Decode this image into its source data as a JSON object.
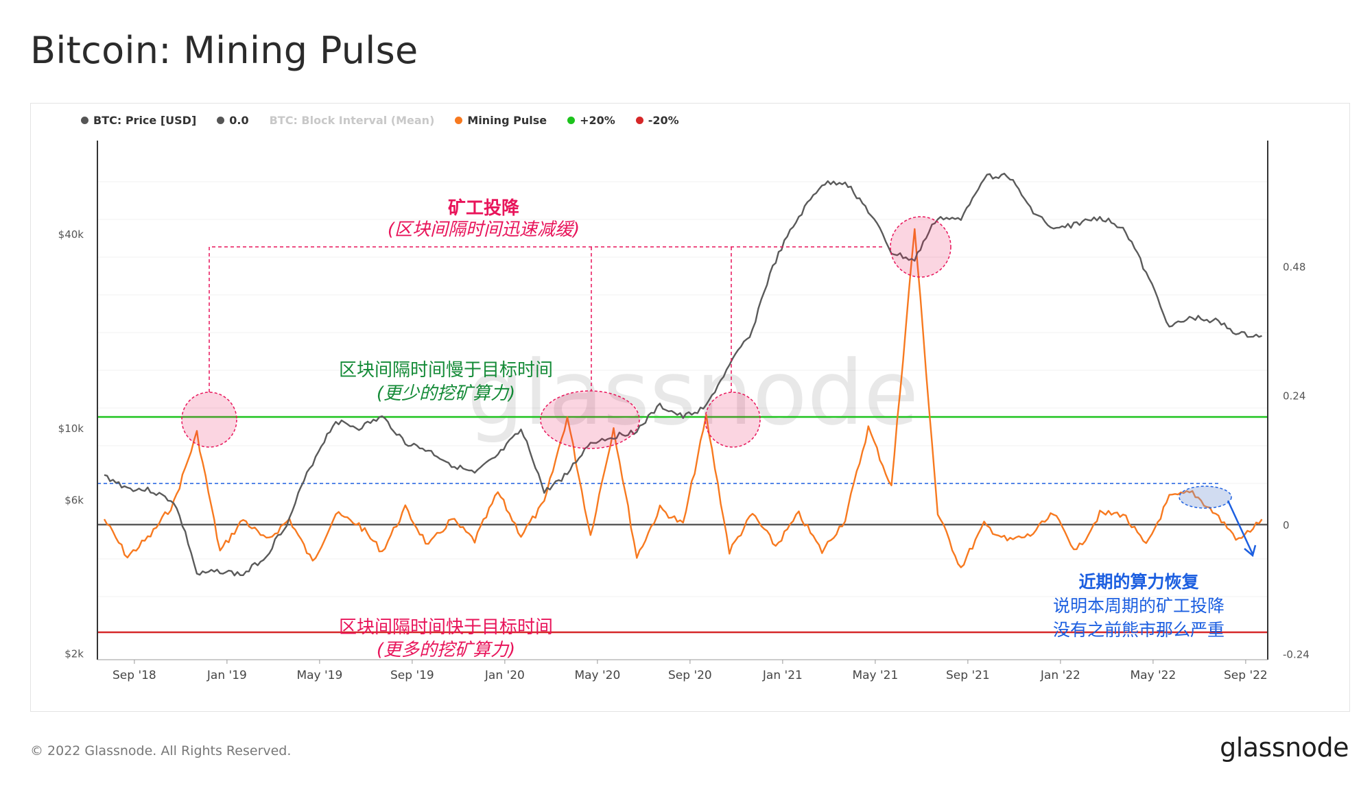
{
  "page": {
    "title": "Bitcoin: Mining Pulse"
  },
  "legend": [
    {
      "label": "BTC: Price [USD]",
      "color": "#555555",
      "muted": false
    },
    {
      "label": "0.0",
      "color": "#555555",
      "muted": false
    },
    {
      "label": "BTC: Block Interval (Mean)",
      "color": "#cccccc",
      "muted": true
    },
    {
      "label": "Mining Pulse",
      "color": "#f7791f",
      "muted": false
    },
    {
      "label": "+20%",
      "color": "#1cc31c",
      "muted": false
    },
    {
      "label": "-20%",
      "color": "#d62728",
      "muted": false
    }
  ],
  "watermark": "glassnode",
  "annotations": {
    "capitulation_title": "矿工投降",
    "capitulation_sub": "(区块间隔时间迅速减缓)",
    "slow_title": "区块间隔时间慢于目标时间",
    "slow_sub": "(更少的挖矿算力)",
    "fast_title": "区块间隔时间快于目标时间",
    "fast_sub": "(更多的挖矿算力)",
    "recovery_title": "近期的算力恢复",
    "recovery_line1": "说明本周期的矿工投降",
    "recovery_line2": "没有之前熊市那么严重"
  },
  "colors": {
    "price": "#5a5a5a",
    "pulse": "#f7791f",
    "plus20": "#1cc31c",
    "minus20": "#d62728",
    "annot_red": "#e8145a",
    "annot_green": "#138a36",
    "annot_blue": "#1c5fe0"
  },
  "chart_data": {
    "type": "line",
    "x_ticks": [
      "Sep '18",
      "Jan '19",
      "May '19",
      "Sep '19",
      "Jan '20",
      "May '20",
      "Sep '20",
      "Jan '21",
      "May '21",
      "Sep '21",
      "Jan '22",
      "May '22",
      "Sep '22"
    ],
    "y_left_ticks": [
      "$40k",
      "$10k",
      "$6k",
      "$2k"
    ],
    "y_left_scale": "log",
    "y_right_ticks": [
      "0.48",
      "0.24",
      "0",
      "-0.24"
    ],
    "y_right_range": [
      -0.24,
      0.48
    ],
    "reference_lines": [
      {
        "name": "0.0",
        "value": 0
      },
      {
        "name": "+20%",
        "value": 0.2
      },
      {
        "name": "-20%",
        "value": -0.2
      }
    ],
    "x": [
      "2018-08",
      "2018-09",
      "2018-10",
      "2018-11",
      "2018-12",
      "2019-01",
      "2019-02",
      "2019-03",
      "2019-04",
      "2019-05",
      "2019-06",
      "2019-07",
      "2019-08",
      "2019-09",
      "2019-10",
      "2019-11",
      "2019-12",
      "2020-01",
      "2020-02",
      "2020-03",
      "2020-04",
      "2020-05",
      "2020-06",
      "2020-07",
      "2020-08",
      "2020-09",
      "2020-10",
      "2020-11",
      "2020-12",
      "2021-01",
      "2021-02",
      "2021-03",
      "2021-04",
      "2021-05",
      "2021-06",
      "2021-07",
      "2021-08",
      "2021-09",
      "2021-10",
      "2021-11",
      "2021-12",
      "2022-01",
      "2022-02",
      "2022-03",
      "2022-04",
      "2022-05",
      "2022-06",
      "2022-07",
      "2022-08",
      "2022-09",
      "2022-10"
    ],
    "series": [
      {
        "name": "BTC: Price [USD]",
        "axis": "left",
        "values": [
          7100,
          6500,
          6400,
          5900,
          3500,
          3600,
          3500,
          4000,
          5200,
          7800,
          10500,
          10000,
          10800,
          9000,
          8500,
          7700,
          7200,
          8200,
          9800,
          6300,
          7200,
          9000,
          9400,
          9800,
          11700,
          10800,
          11600,
          15500,
          20000,
          33000,
          45000,
          57000,
          58000,
          47000,
          35000,
          33000,
          45000,
          44000,
          60000,
          61000,
          48000,
          41000,
          43000,
          45000,
          42000,
          30000,
          20500,
          22000,
          21500,
          19500,
          19300
        ]
      },
      {
        "name": "Mining Pulse",
        "axis": "right",
        "values": [
          0.01,
          -0.06,
          -0.02,
          0.04,
          0.17,
          -0.05,
          0.01,
          -0.03,
          0.01,
          -0.07,
          0.02,
          0.0,
          -0.05,
          0.03,
          -0.04,
          0.01,
          -0.03,
          0.06,
          -0.02,
          0.04,
          0.2,
          -0.02,
          0.18,
          -0.06,
          0.03,
          0.0,
          0.2,
          -0.05,
          0.02,
          -0.04,
          0.02,
          -0.05,
          0.01,
          0.18,
          0.07,
          0.55,
          0.02,
          -0.08,
          0.0,
          -0.03,
          -0.02,
          0.02,
          -0.05,
          0.02,
          0.02,
          -0.04,
          0.05,
          0.06,
          0.02,
          -0.03,
          0.01
        ]
      }
    ]
  }
}
